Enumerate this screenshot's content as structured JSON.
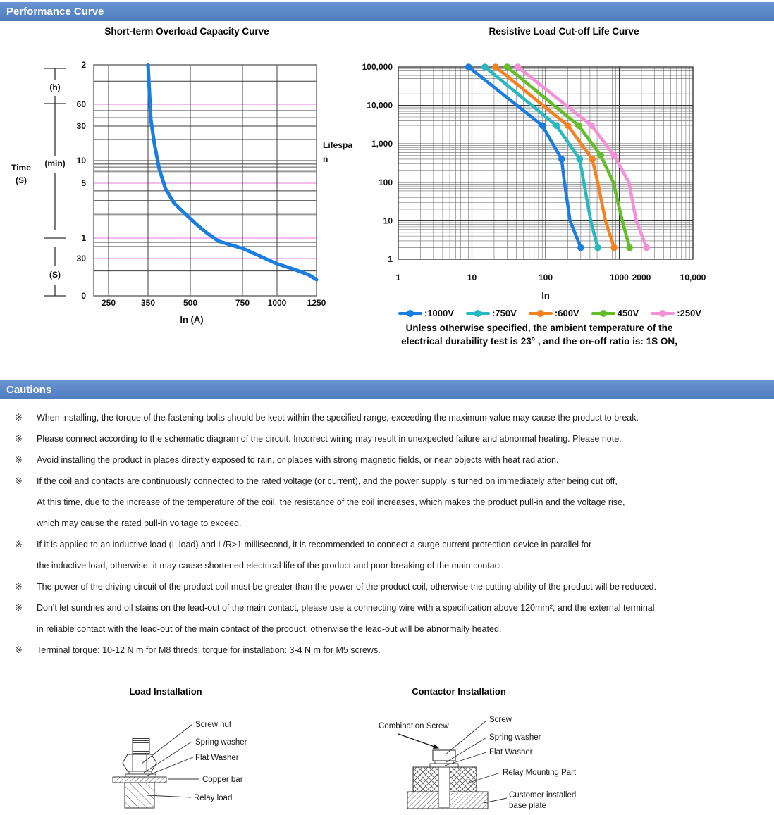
{
  "page": {
    "section1_title": "Performance Curve",
    "section2_title": "Cautions"
  },
  "chart_data": [
    {
      "type": "line",
      "title": "Short-term Overload Capacity Curve",
      "xlabel": "In (A)",
      "ylabel_lines": [
        "Time",
        "(S)"
      ],
      "y_units": [
        "(h)",
        "(min)",
        "(S)"
      ],
      "x_ticks": [
        {
          "label": "250",
          "a": 250
        },
        {
          "label": "350",
          "a": 350
        },
        {
          "label": "500",
          "a": 500
        },
        {
          "label": "750",
          "a": 750
        },
        {
          "label": "1000",
          "a": 1000
        },
        {
          "label": "1250",
          "a": 1250
        }
      ],
      "y_ticks": [
        {
          "label": "2",
          "s": 7200
        },
        {
          "label": "60",
          "s": 3600
        },
        {
          "label": "30",
          "s": 1800
        },
        {
          "label": "10",
          "s": 600
        },
        {
          "label": "5",
          "s": 300
        },
        {
          "label": "1",
          "s": 60
        },
        {
          "label": "30",
          "s": 30
        },
        {
          "label": "0",
          "s": 0
        }
      ],
      "gridline_colors": {
        "k": "#3c3c3c",
        "m": "#e678d8",
        "g": "#999999"
      },
      "h_gridlines": [
        [
          5400,
          "k"
        ],
        [
          3600,
          "m"
        ],
        [
          2940,
          "k"
        ],
        [
          2350,
          "k"
        ],
        [
          1800,
          "k"
        ],
        [
          1175,
          "k"
        ],
        [
          600,
          "k"
        ],
        [
          540,
          "k"
        ],
        [
          490,
          "g"
        ],
        [
          430,
          "g"
        ],
        [
          385,
          "k"
        ],
        [
          300,
          "m"
        ],
        [
          240,
          "k"
        ],
        [
          180,
          "k"
        ],
        [
          120,
          "g"
        ],
        [
          60,
          "m"
        ],
        [
          52,
          "g"
        ],
        [
          45,
          "k"
        ],
        [
          30,
          "m"
        ],
        [
          20,
          "k"
        ]
      ],
      "series": [
        {
          "name": "overload-capacity",
          "color": "#1a7de0",
          "points": [
            [
              350,
              7200
            ],
            [
              360,
              2200
            ],
            [
              373,
              1000
            ],
            [
              390,
              460
            ],
            [
              412,
              255
            ],
            [
              442,
              168
            ],
            [
              480,
              124
            ],
            [
              525,
              92
            ],
            [
              575,
              71
            ],
            [
              635,
              54
            ],
            [
              755,
              42
            ],
            [
              870,
              33
            ],
            [
              995,
              26
            ],
            [
              1115,
              21
            ],
            [
              1200,
              17
            ],
            [
              1250,
              13
            ]
          ]
        }
      ]
    },
    {
      "type": "line",
      "title": "Resistive Load Cut-off Life Curve",
      "xlabel": "In",
      "ylabel_lines": [
        "Lifespa",
        "n"
      ],
      "x_ticks": [
        {
          "label": "1",
          "v": 1
        },
        {
          "label": "10",
          "v": 10
        },
        {
          "label": "100",
          "v": 100
        },
        {
          "label": "1000",
          "v": 1000
        },
        {
          "label": "2000",
          "v": 2000
        },
        {
          "label": "10,000",
          "v": 10000
        }
      ],
      "y_ticks": [
        {
          "label": "100,000",
          "v": 100000
        },
        {
          "label": "10,000",
          "v": 10000
        },
        {
          "label": "1,000",
          "v": 1000
        },
        {
          "label": "100",
          "v": 100
        },
        {
          "label": "10",
          "v": 10
        },
        {
          "label": "1",
          "v": 1
        }
      ],
      "series": [
        {
          "name": ":1000V",
          "color": "#1a7de0",
          "points": [
            [
              9,
              100000
            ],
            [
              90,
              3000
            ],
            [
              165,
              400
            ],
            [
              180,
              100
            ],
            [
              215,
              10
            ],
            [
              300,
              2
            ]
          ]
        },
        {
          "name": ":750V",
          "color": "#27b9c0",
          "points": [
            [
              15,
              100000
            ],
            [
              140,
              3000
            ],
            [
              290,
              400
            ],
            [
              330,
              100
            ],
            [
              410,
              10
            ],
            [
              510,
              2
            ]
          ]
        },
        {
          "name": ":600V",
          "color": "#f5821f",
          "points": [
            [
              21,
              100000
            ],
            [
              200,
              3000
            ],
            [
              430,
              400
            ],
            [
              510,
              100
            ],
            [
              650,
              10
            ],
            [
              850,
              2
            ]
          ]
        },
        {
          "name": "450V",
          "color": "#63be2a",
          "points": [
            [
              30,
              100000
            ],
            [
              280,
              3000
            ],
            [
              560,
              500
            ],
            [
              830,
              100
            ],
            [
              1100,
              10
            ],
            [
              1380,
              2
            ]
          ]
        },
        {
          "name": ":250V",
          "color": "#f48fd8",
          "points": [
            [
              42,
              100000
            ],
            [
              420,
              3000
            ],
            [
              850,
              500
            ],
            [
              1350,
              100
            ],
            [
              1700,
              10
            ],
            [
              2350,
              2
            ]
          ]
        }
      ],
      "note_lines": [
        "Unless otherwise specified, the ambient temperature of the",
        "electrical durability test is 23° , and the on-off ratio is: 1S ON,"
      ]
    }
  ],
  "cautions": {
    "bullet_char": "※",
    "lines": [
      {
        "bullet": true,
        "text": "When installing, the torque of the fastening bolts should be kept within the specified range, exceeding the maximum value may cause the product to break."
      },
      {
        "bullet": true,
        "text": "Please connect according to the schematic diagram of the circuit. Incorrect wiring may result in unexpected failure and abnormal heating. Please note."
      },
      {
        "bullet": true,
        "text": "Avoid installing the product in places directly exposed to rain, or places with strong magnetic fields, or near objects with heat radiation."
      },
      {
        "bullet": true,
        "text": "If the coil and contacts are continuously connected to the rated voltage (or current), and the power supply is turned on immediately after being cut off,"
      },
      {
        "bullet": false,
        "text": "At this time, due to the increase of the temperature of the coil, the resistance of the coil increases, which makes the product pull-in and the voltage rise,"
      },
      {
        "bullet": false,
        "text": "which may cause the rated pull-in voltage to exceed."
      },
      {
        "bullet": true,
        "text": "If it is applied to an inductive load (L load) and L/R>1 millisecond, it is recommended to connect a surge current protection device in parallel for"
      },
      {
        "bullet": false,
        "text": "the inductive load, otherwise, it may cause shortened electrical life of the product and poor breaking of the main contact."
      },
      {
        "bullet": true,
        "text": "The power of the driving circuit of the product coil must be greater than the power of the product coil, otherwise the cutting ability of the product will be reduced."
      },
      {
        "bullet": true,
        "text": "Don't let sundries and oil stains on the lead-out of the main contact, please use a connecting wire with a specification above 120mm²,  and the external terminal"
      },
      {
        "bullet": false,
        "text": "in reliable contact with the lead-out of the main contact of the product, otherwise the lead-out will be abnormally heated."
      },
      {
        "bullet": true,
        "text": "Terminal torque: 10-12 N m for M8 threds; torque for installation: 3-4 N m for M5 screws."
      }
    ]
  },
  "diagrams": {
    "load": {
      "title": "Load Installation",
      "labels": [
        "Screw nut",
        "Spring washer",
        "Flat Washer",
        "Copper bar",
        "Relay load"
      ]
    },
    "contactor": {
      "title": "Contactor Installation",
      "labels": [
        "Combination Screw",
        "Screw",
        "Spring washer",
        "Flat Washer",
        "Relay Mounting Part",
        "Customer installed",
        "base plate"
      ]
    }
  }
}
